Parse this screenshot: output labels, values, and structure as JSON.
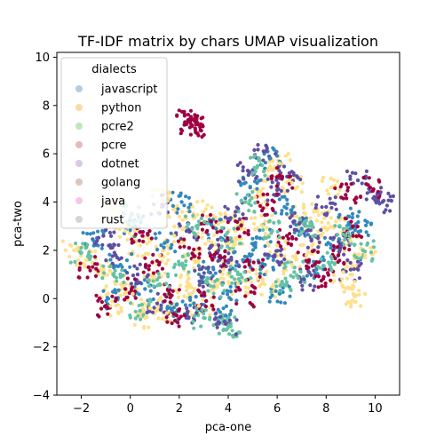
{
  "chart_data": {
    "type": "scatter",
    "title": "TF-IDF matrix by chars UMAP visualization",
    "xlabel": "pca-one",
    "ylabel": "pca-two",
    "xlim": [
      -3,
      11
    ],
    "ylim": [
      -4,
      10.2
    ],
    "x_ticks": [
      -2,
      0,
      2,
      4,
      6,
      8,
      10
    ],
    "y_ticks": [
      -4,
      -2,
      0,
      2,
      4,
      6,
      8,
      10
    ],
    "grid": false,
    "legend": {
      "title": "dialects",
      "placement": "top-left",
      "entries": [
        {
          "label": "javascript",
          "color": "#b3cde3"
        },
        {
          "label": "python",
          "color": "#fdd9a5"
        },
        {
          "label": "pcre2",
          "color": "#c2e3bd"
        },
        {
          "label": "pcre",
          "color": "#ecb7b8"
        },
        {
          "label": "dotnet",
          "color": "#d9c9e3"
        },
        {
          "label": "golang",
          "color": "#dcc5ba"
        },
        {
          "label": "java",
          "color": "#f5c7e6"
        },
        {
          "label": "rust",
          "color": "#d4d4d4"
        }
      ]
    },
    "series": [
      {
        "color": "#fee08b",
        "points": [
          [
            -2.3,
            2.0
          ],
          [
            -1.8,
            1.6
          ],
          [
            -1.2,
            1.2
          ],
          [
            -0.6,
            0.6
          ],
          [
            0.1,
            0.2
          ],
          [
            0.8,
            -0.4
          ],
          [
            1.5,
            -0.6
          ],
          [
            2.2,
            0.1
          ],
          [
            2.8,
            -0.3
          ],
          [
            3.4,
            0.4
          ],
          [
            1.2,
            1.8
          ],
          [
            0.4,
            2.2
          ],
          [
            -0.2,
            2.8
          ],
          [
            1.8,
            2.6
          ],
          [
            2.6,
            1.6
          ],
          [
            3.2,
            2.4
          ],
          [
            3.8,
            1.2
          ],
          [
            4.2,
            2.2
          ],
          [
            4.6,
            3.2
          ],
          [
            5.1,
            4.2
          ],
          [
            5.6,
            5.3
          ],
          [
            6.1,
            5.6
          ],
          [
            6.6,
            4.8
          ],
          [
            5.4,
            3.0
          ],
          [
            6.0,
            2.2
          ],
          [
            6.6,
            1.4
          ],
          [
            7.2,
            1.8
          ],
          [
            7.8,
            2.6
          ],
          [
            8.4,
            3.2
          ],
          [
            9.0,
            2.4
          ],
          [
            9.6,
            1.8
          ],
          [
            8.7,
            1.1
          ],
          [
            7.5,
            3.6
          ],
          [
            6.8,
            3.4
          ],
          [
            4.4,
            0.6
          ],
          [
            5.2,
            0.8
          ],
          [
            3.0,
            3.6
          ],
          [
            2.0,
            3.4
          ],
          [
            0.6,
            -0.8
          ],
          [
            -0.8,
            -0.3
          ],
          [
            1.0,
            0.9
          ],
          [
            2.4,
            0.6
          ],
          [
            3.6,
            3.1
          ],
          [
            5.8,
            0.5
          ],
          [
            8.2,
            4.6
          ]
        ]
      },
      {
        "color": "#3288bd",
        "points": [
          [
            -1.5,
            2.4
          ],
          [
            -0.4,
            1.4
          ],
          [
            0.6,
            0.4
          ],
          [
            1.4,
            2.3
          ],
          [
            2.6,
            -0.2
          ],
          [
            3.2,
            1.1
          ],
          [
            3.9,
            -0.7
          ],
          [
            4.6,
            1.6
          ],
          [
            5.3,
            2.5
          ],
          [
            4.9,
            4.6
          ],
          [
            5.7,
            5.8
          ],
          [
            6.3,
            3.8
          ],
          [
            7.0,
            2.9
          ],
          [
            7.6,
            1.2
          ],
          [
            8.2,
            2.1
          ],
          [
            8.9,
            3.4
          ],
          [
            9.4,
            2.8
          ],
          [
            6.1,
            0.2
          ],
          [
            2.1,
            4.0
          ],
          [
            0.2,
            3.0
          ],
          [
            -0.9,
            0.0
          ],
          [
            1.7,
            -0.5
          ],
          [
            3.5,
            2.9
          ],
          [
            4.1,
            0.3
          ],
          [
            5.5,
            1.4
          ]
        ]
      },
      {
        "color": "#5e4fa2",
        "points": [
          [
            -1.1,
            2.6
          ],
          [
            0.3,
            1.0
          ],
          [
            1.1,
            -0.2
          ],
          [
            2.3,
            2.8
          ],
          [
            2.9,
            0.9
          ],
          [
            3.6,
            2.0
          ],
          [
            4.3,
            3.6
          ],
          [
            4.8,
            5.3
          ],
          [
            5.5,
            6.1
          ],
          [
            6.0,
            4.5
          ],
          [
            6.5,
            5.2
          ],
          [
            6.9,
            3.1
          ],
          [
            7.4,
            2.4
          ],
          [
            8.0,
            3.8
          ],
          [
            8.6,
            2.2
          ],
          [
            9.3,
            4.9
          ],
          [
            10.3,
            4.0
          ],
          [
            10.1,
            4.3
          ],
          [
            1.3,
            3.9
          ],
          [
            -0.6,
            1.8
          ],
          [
            2.7,
            -0.6
          ],
          [
            4.0,
            1.5
          ],
          [
            5.9,
            1.8
          ],
          [
            7.1,
            0.8
          ],
          [
            9.0,
            1.2
          ]
        ]
      },
      {
        "color": "#9e0142",
        "points": [
          [
            -1.7,
            1.3
          ],
          [
            -0.2,
            0.4
          ],
          [
            0.9,
            1.5
          ],
          [
            1.6,
            0.2
          ],
          [
            2.4,
            2.1
          ],
          [
            3.1,
            -0.1
          ],
          [
            3.7,
            1.7
          ],
          [
            4.4,
            2.9
          ],
          [
            5.0,
            1.2
          ],
          [
            5.6,
            3.9
          ],
          [
            6.4,
            2.6
          ],
          [
            7.3,
            1.6
          ],
          [
            7.9,
            0.9
          ],
          [
            8.5,
            1.8
          ],
          [
            9.1,
            3.0
          ],
          [
            9.8,
            4.6
          ],
          [
            2.5,
            7.2
          ],
          [
            6.2,
            5.0
          ],
          [
            0.5,
            2.6
          ],
          [
            -1.0,
            -0.3
          ],
          [
            3.3,
            3.2
          ],
          [
            4.7,
            0.1
          ],
          [
            8.8,
            4.3
          ],
          [
            1.9,
            -0.7
          ]
        ]
      },
      {
        "color": "#66c2a5",
        "points": [
          [
            -2.0,
            1.9
          ],
          [
            -0.7,
            1.0
          ],
          [
            0.4,
            -0.5
          ],
          [
            1.2,
            0.6
          ],
          [
            2.0,
            1.4
          ],
          [
            2.7,
            3.0
          ],
          [
            3.4,
            0.5
          ],
          [
            4.1,
            2.5
          ],
          [
            4.7,
            4.0
          ],
          [
            5.2,
            5.5
          ],
          [
            5.8,
            2.8
          ],
          [
            6.7,
            1.1
          ],
          [
            7.3,
            3.0
          ],
          [
            8.1,
            1.5
          ],
          [
            8.8,
            2.6
          ],
          [
            9.5,
            2.0
          ],
          [
            3.0,
            -0.8
          ],
          [
            0.0,
            3.4
          ],
          [
            6.2,
            0.7
          ],
          [
            4.5,
            1.0
          ]
        ]
      }
    ],
    "outliers": [
      {
        "color": "#9e0142",
        "points": [
          [
            2.35,
            7.35
          ],
          [
            2.5,
            7.2
          ],
          [
            2.65,
            7.05
          ]
        ]
      },
      {
        "color": "#66c2a5",
        "points": [
          [
            4.0,
            -1.1
          ],
          [
            4.1,
            -1.15
          ]
        ]
      },
      {
        "color": "#5e4fa2",
        "points": [
          [
            3.9,
            -1.05
          ]
        ]
      },
      {
        "color": "#fee08b",
        "points": [
          [
            9.2,
            0.1
          ],
          [
            9.1,
            0.5
          ],
          [
            -0.8,
            3.7
          ],
          [
            1.3,
            4.1
          ]
        ]
      }
    ]
  }
}
